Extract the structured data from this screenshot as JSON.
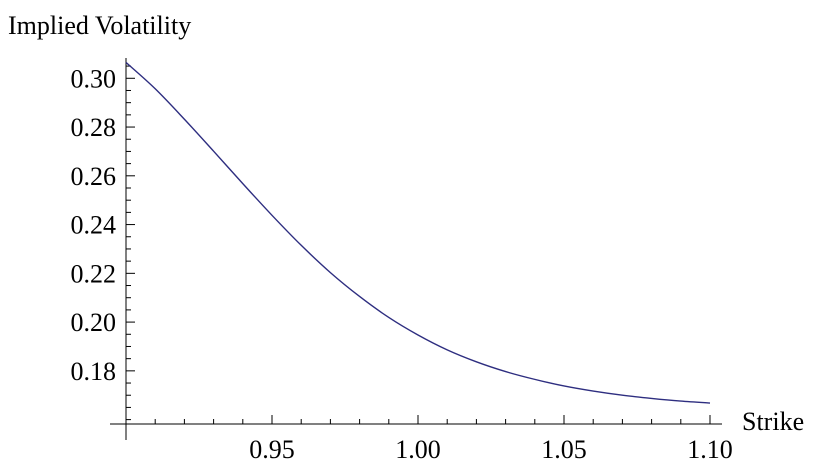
{
  "chart_data": {
    "type": "line",
    "title": "",
    "xlabel": "Strike",
    "ylabel": "Implied Volatility",
    "xlim": [
      0.9,
      1.1
    ],
    "ylim": [
      0.1582,
      0.3075
    ],
    "x_origin": 0.9,
    "y_origin": 0.1582,
    "x_major_ticks": [
      0.95,
      1.0,
      1.05,
      1.1
    ],
    "x_tick_labels": [
      "0.95",
      "1.00",
      "1.05",
      "1.10"
    ],
    "y_major_ticks": [
      0.18,
      0.2,
      0.22,
      0.24,
      0.26,
      0.28,
      0.3
    ],
    "y_tick_labels": [
      "0.18",
      "0.20",
      "0.22",
      "0.24",
      "0.26",
      "0.28",
      "0.30"
    ],
    "grid": false,
    "series": [
      {
        "color": "#2e2e80",
        "x": [
          0.9,
          0.91,
          0.92,
          0.93,
          0.94,
          0.95,
          0.96,
          0.97,
          0.98,
          0.99,
          1.0,
          1.01,
          1.02,
          1.03,
          1.04,
          1.05,
          1.06,
          1.07,
          1.08,
          1.09,
          1.1
        ],
        "y": [
          0.3065,
          0.2957,
          0.2832,
          0.2701,
          0.2568,
          0.2438,
          0.2315,
          0.2203,
          0.2105,
          0.2019,
          0.1947,
          0.1886,
          0.1837,
          0.1797,
          0.1765,
          0.1738,
          0.1717,
          0.17,
          0.1687,
          0.1676,
          0.1668
        ]
      }
    ]
  }
}
